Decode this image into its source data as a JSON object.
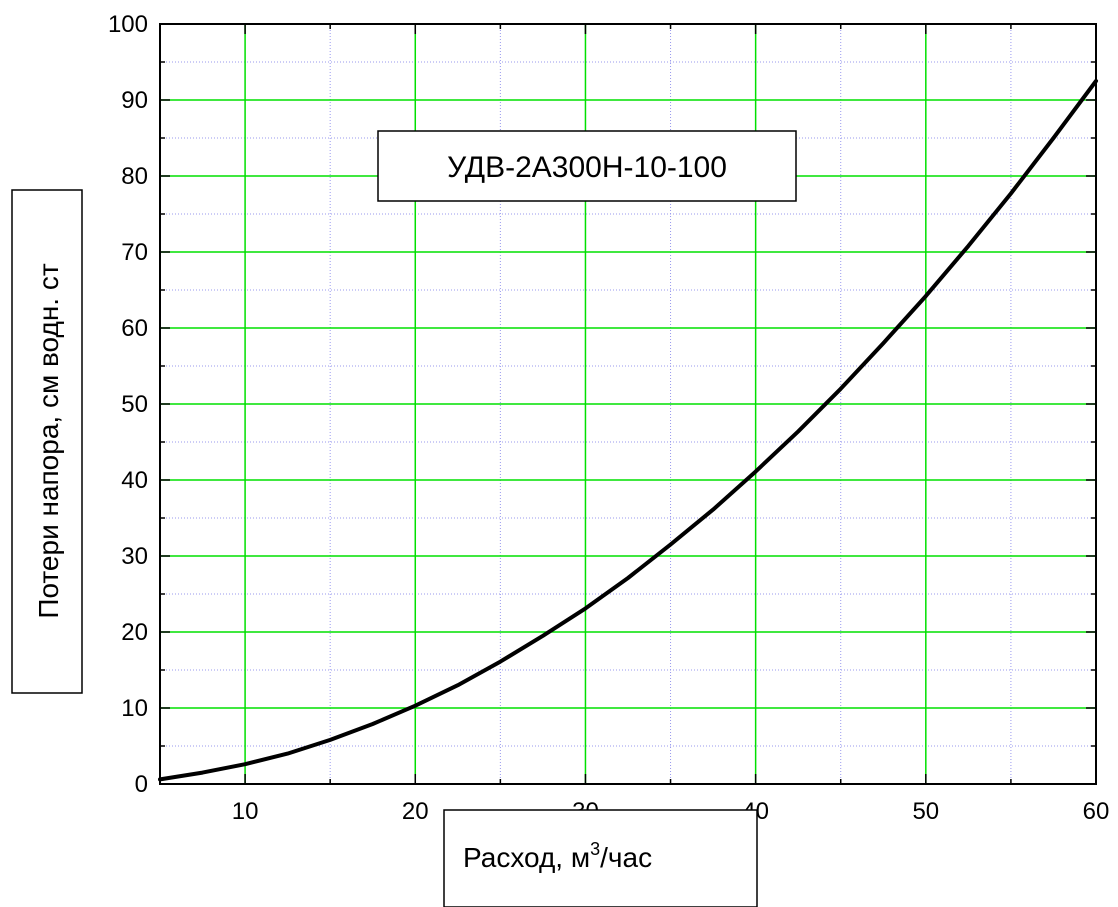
{
  "chart_data": {
    "type": "line",
    "title": "УДВ-2А300Н-10-100",
    "xlabel_main": "Расход, м",
    "xlabel_sup": "3",
    "xlabel_tail": "/час",
    "ylabel": "Потери напора, см водн. ст",
    "xlim": [
      5,
      60
    ],
    "ylim": [
      0,
      100
    ],
    "x_ticks": [
      10,
      20,
      30,
      40,
      50,
      60
    ],
    "y_ticks": [
      0,
      10,
      20,
      30,
      40,
      50,
      60,
      70,
      80,
      90,
      100
    ],
    "grid": true,
    "series": [
      {
        "color": "#000000",
        "x": [
          5,
          7.5,
          10,
          12.5,
          15,
          17.5,
          20,
          22.5,
          25,
          27.5,
          30,
          32.5,
          35,
          37.5,
          40,
          42.5,
          45,
          47.5,
          50,
          52.5,
          55,
          57.5,
          60
        ],
        "y": [
          0.6,
          1.5,
          2.6,
          4.0,
          5.8,
          7.9,
          10.3,
          13.0,
          16.1,
          19.5,
          23.1,
          27.1,
          31.5,
          36.1,
          41.1,
          46.4,
          52.0,
          58.0,
          64.2,
          70.8,
          77.7,
          85.0,
          92.5
        ]
      }
    ]
  },
  "colors": {
    "major_grid": "#00e000",
    "minor_grid": "#9999ee",
    "axis": "#000000",
    "curve": "#000000"
  }
}
